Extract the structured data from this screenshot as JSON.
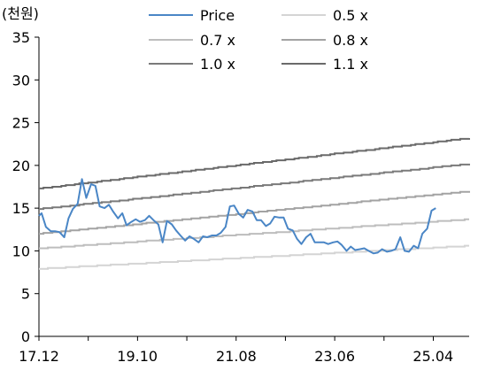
{
  "chart_data": {
    "type": "line",
    "unit_label": "(천원)",
    "grid": false,
    "legend_position": "top",
    "ylim": [
      0,
      35
    ],
    "y_ticks": [
      "0",
      "5",
      "10",
      "15",
      "20",
      "25",
      "30",
      "35"
    ],
    "x_tick_labels": [
      "17.12",
      "19.10",
      "21.08",
      "23.06",
      "25.04"
    ],
    "x_range": [
      "2017.12",
      "2025.12"
    ],
    "series": [
      {
        "name": "Price",
        "color": "#4a86c6",
        "width": 2,
        "x": [
          2017.95,
          2018.0,
          2018.08,
          2018.17,
          2018.25,
          2018.33,
          2018.42,
          2018.5,
          2018.58,
          2018.67,
          2018.75,
          2018.83,
          2018.92,
          2019.0,
          2019.08,
          2019.17,
          2019.25,
          2019.33,
          2019.42,
          2019.5,
          2019.58,
          2019.67,
          2019.75,
          2019.83,
          2019.92,
          2020.0,
          2020.08,
          2020.17,
          2020.25,
          2020.33,
          2020.42,
          2020.5,
          2020.58,
          2020.67,
          2020.75,
          2020.83,
          2020.92,
          2021.0,
          2021.08,
          2021.17,
          2021.25,
          2021.33,
          2021.42,
          2021.5,
          2021.58,
          2021.67,
          2021.75,
          2021.83,
          2021.92,
          2022.0,
          2022.08,
          2022.17,
          2022.25,
          2022.33,
          2022.42,
          2022.5,
          2022.58,
          2022.67,
          2022.75,
          2022.83,
          2022.92,
          2023.0,
          2023.08,
          2023.17,
          2023.25,
          2023.33,
          2023.42,
          2023.5,
          2023.58,
          2023.67,
          2023.75,
          2023.83,
          2023.92,
          2024.0,
          2024.08,
          2024.17,
          2024.25,
          2024.33,
          2024.42,
          2024.5,
          2024.58,
          2024.67,
          2024.75,
          2024.83,
          2024.92,
          2025.0,
          2025.08,
          2025.17,
          2025.25,
          2025.33,
          2025.42,
          2025.5
        ],
        "values": [
          14.1,
          14.4,
          12.8,
          12.3,
          12.3,
          12.2,
          11.6,
          13.8,
          14.9,
          15.5,
          18.4,
          16.2,
          17.8,
          17.6,
          15.2,
          15.0,
          15.4,
          14.6,
          13.8,
          14.4,
          13.0,
          13.4,
          13.7,
          13.4,
          13.6,
          14.1,
          13.6,
          13.1,
          11.0,
          13.5,
          13.1,
          12.4,
          11.8,
          11.2,
          11.7,
          11.4,
          11.0,
          11.7,
          11.6,
          11.8,
          11.8,
          12.1,
          12.8,
          15.2,
          15.3,
          14.3,
          13.9,
          14.8,
          14.6,
          13.6,
          13.6,
          12.9,
          13.2,
          14.0,
          13.9,
          13.9,
          12.6,
          12.4,
          11.4,
          10.8,
          11.6,
          12.0,
          11.0,
          11.0,
          11.0,
          10.8,
          11.0,
          11.1,
          10.7,
          10.0,
          10.5,
          10.1,
          10.2,
          10.3,
          10.0,
          9.7,
          9.8,
          10.2,
          9.9,
          10.0,
          10.2,
          11.6,
          10.0,
          9.9,
          10.6,
          10.3,
          12.0,
          12.6,
          14.7,
          15.0,
          null,
          null
        ]
      },
      {
        "name": "0.5 x",
        "color": "#d4d4d4",
        "width": 2,
        "start": 7.9,
        "end": 10.6
      },
      {
        "name": "0.7 x",
        "color": "#bdbdbd",
        "width": 2,
        "start": 10.3,
        "end": 13.7
      },
      {
        "name": "0.8 x",
        "color": "#a3a3a3",
        "width": 2,
        "start": 12.0,
        "end": 17.0
      },
      {
        "name": "1.0 x",
        "color": "#7a7a7a",
        "width": 2,
        "start": 14.9,
        "end": 20.2
      },
      {
        "name": "1.1 x",
        "color": "#6a6a6a",
        "width": 2,
        "start": 17.3,
        "end": 23.2
      }
    ]
  }
}
